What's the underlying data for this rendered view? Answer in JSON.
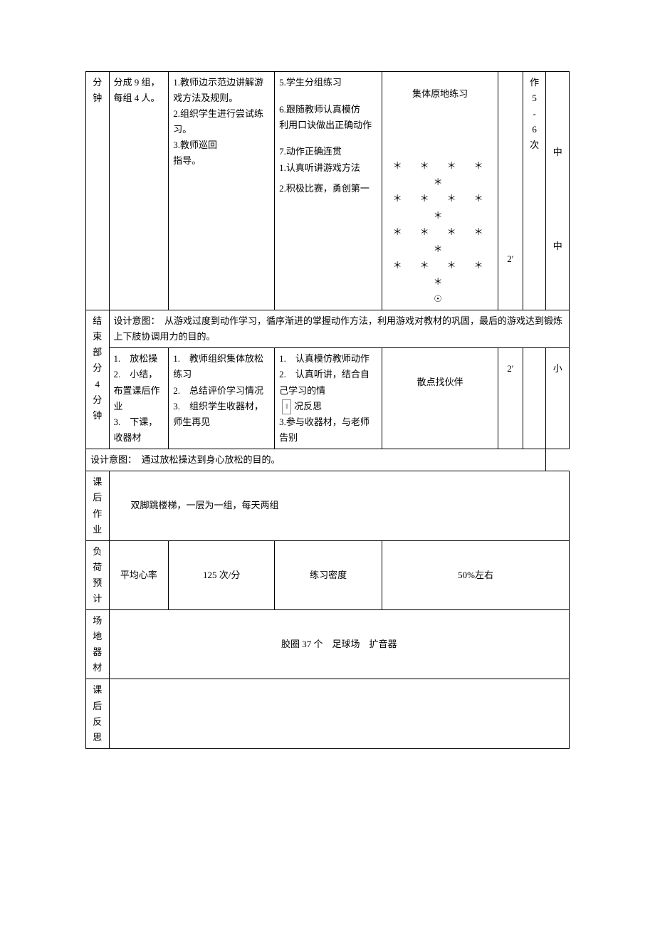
{
  "row1": {
    "c1": "分钟",
    "c2": "分成 9 组，每组 4 人。",
    "c3": "1.教师边示范边讲解游戏方法及规则。\n2.组织学生进行尝试练 习。\n3.教师巡回\n指导。",
    "c4a": "5.学生分组练习",
    "c4b": "6.跟随教师认真模仿　利用口诀做出正确动作",
    "c4c": "7.动作正确连贯",
    "c4d": "1.认真听讲游戏方法",
    "c4e": "2.积极比赛，勇创第一",
    "c5a": "集体原地练习",
    "c5b_stars": "＊　＊　＊　＊　＊\n＊　＊　＊　＊　＊\n＊　＊　＊　＊　＊\n＊　＊　＊　＊　＊\n☉",
    "c6": "2′",
    "c7a": "作5-6次",
    "c8a": "中",
    "c8b": "中"
  },
  "row1_design": "设计意图：　从游戏过度到动作学习，循序渐进的掌握动作方法，利用游戏对教材的巩固，最后的游戏达到锻炼上下肢协调用力的目的。",
  "row2": {
    "c1": "结束部分4分钟",
    "c2": "1.　放松操\n2.　小结，布置课后作业\n3.　下课，收器材",
    "c3": "1.　教师组织集体放松练习\n2.　总结评价学习情况\n3.　组织学生收器材，师生再见",
    "c4_1": "1.　认真模仿教师动作",
    "c4_2": "2.　认真听讲，结合自己学习的情",
    "c4_3": "况反思",
    "c4_4": "3.参与收器材，与老师告别",
    "c5": "散点找伙伴",
    "c6": "2′",
    "c8": "小"
  },
  "row2_design": "设计意图：　通过放松操达到身心放松的目的。",
  "homework": {
    "label": "课后作业",
    "value": "双脚跳楼梯，一层为一组，每天两组"
  },
  "load": {
    "label": "负荷预计",
    "hr_label": "平均心率",
    "hr_value": "125 次/分",
    "density_label": "练习密度",
    "density_value": "50%左右"
  },
  "equip": {
    "label": "场地器材",
    "value": "胶圈 37 个　足球场　扩音器"
  },
  "reflect": {
    "label": "课后反思"
  },
  "page_mark": "‖"
}
